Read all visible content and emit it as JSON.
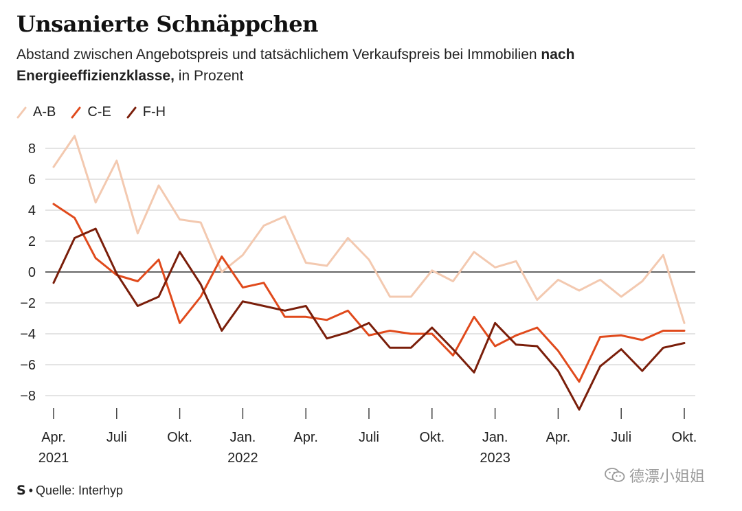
{
  "title": "Unsanierte Schnäppchen",
  "subtitle_part1": "Abstand zwischen Angebotspreis und tatsächlichem Verkaufspreis bei Immobilien ",
  "subtitle_bold": "nach Energieeffizienzklasse,",
  "subtitle_part2": " in Prozent",
  "source_label": "Quelle: Interhyp",
  "source_logo": "S",
  "watermark_text": "德漂小姐姐",
  "chart_data": {
    "type": "line",
    "ylim": [
      -9,
      9
    ],
    "yticks": [
      8,
      6,
      4,
      2,
      0,
      -2,
      -4,
      -6,
      -8
    ],
    "ytick_labels": [
      "8",
      "6",
      "4",
      "2",
      "0",
      "−2",
      "−4",
      "−6",
      "−8"
    ],
    "grid": true,
    "legend_position": "top-left",
    "x": [
      "2021-04",
      "2021-05",
      "2021-06",
      "2021-07",
      "2021-08",
      "2021-09",
      "2021-10",
      "2021-11",
      "2021-12",
      "2022-01",
      "2022-02",
      "2022-03",
      "2022-04",
      "2022-05",
      "2022-06",
      "2022-07",
      "2022-08",
      "2022-09",
      "2022-10",
      "2022-11",
      "2022-12",
      "2023-01",
      "2023-02",
      "2023-03",
      "2023-04",
      "2023-05",
      "2023-06",
      "2023-07",
      "2023-08",
      "2023-09",
      "2023-10"
    ],
    "xtick_positions": [
      0,
      3,
      6,
      9,
      12,
      15,
      18,
      21,
      24,
      27,
      30
    ],
    "xtick_labels": [
      "Apr.",
      "Juli",
      "Okt.",
      "Jan.",
      "Apr.",
      "Juli",
      "Okt.",
      "Jan.",
      "Apr.",
      "Juli",
      "Okt."
    ],
    "year_labels": [
      {
        "index": 0,
        "label": "2021"
      },
      {
        "index": 9,
        "label": "2022"
      },
      {
        "index": 21,
        "label": "2023"
      }
    ],
    "series": [
      {
        "name": "A-B",
        "color": "#f3c9b0",
        "values": [
          6.8,
          8.8,
          4.5,
          7.2,
          2.5,
          5.6,
          3.4,
          3.2,
          0.0,
          1.1,
          3.0,
          3.6,
          0.6,
          0.4,
          2.2,
          0.8,
          -1.6,
          -1.6,
          0.1,
          -0.6,
          1.3,
          0.3,
          0.7,
          -1.8,
          -0.5,
          -1.2,
          -0.5,
          -1.6,
          -0.6,
          1.1,
          -3.3
        ]
      },
      {
        "name": "C-E",
        "color": "#e04a1c",
        "values": [
          4.4,
          3.5,
          0.9,
          -0.2,
          -0.6,
          0.8,
          -3.3,
          -1.6,
          1.0,
          -1.0,
          -0.7,
          -2.9,
          -2.9,
          -3.1,
          -2.5,
          -4.1,
          -3.8,
          -4.0,
          -4.0,
          -5.4,
          -2.9,
          -4.8,
          -4.1,
          -3.6,
          -5.1,
          -7.1,
          -4.2,
          -4.1,
          -4.4,
          -3.8,
          -3.8
        ]
      },
      {
        "name": "F-H",
        "color": "#7a1e0a",
        "values": [
          -0.7,
          2.2,
          2.8,
          -0.1,
          -2.2,
          -1.6,
          1.3,
          -0.8,
          -3.8,
          -1.9,
          -2.2,
          -2.5,
          -2.2,
          -4.3,
          -3.9,
          -3.3,
          -4.9,
          -4.9,
          -3.6,
          -5.0,
          -6.5,
          -3.3,
          -4.7,
          -4.8,
          -6.4,
          -8.9,
          -6.1,
          -5.0,
          -6.4,
          -4.9,
          -4.6
        ]
      }
    ]
  }
}
